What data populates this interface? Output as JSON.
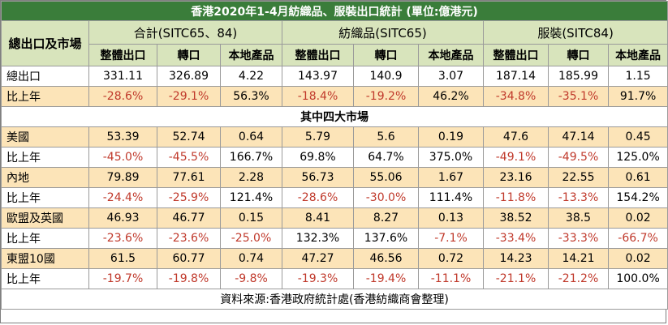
{
  "title": "香港2020年1-4月紡織品、服裝出口統計 (單位:億港元)",
  "header": {
    "row_label": "總出口及市場",
    "groups": [
      "合計(SITC65、84)",
      "紡織品(SITC65)",
      "服裝(SITC84)"
    ],
    "subcols": [
      "整體出口",
      "轉口",
      "本地產品"
    ]
  },
  "rows_top": [
    {
      "label": "總出口",
      "values": [
        "331.11",
        "326.89",
        "4.22",
        "143.97",
        "140.9",
        "3.07",
        "187.14",
        "185.99",
        "1.15"
      ]
    },
    {
      "label": "比上年",
      "values": [
        "-28.6%",
        "-29.1%",
        "56.3%",
        "-18.4%",
        "-19.2%",
        "46.2%",
        "-34.8%",
        "-35.1%",
        "91.7%"
      ]
    }
  ],
  "section_label": "其中四大市場",
  "rows_markets": [
    {
      "label": "美國",
      "values": [
        "53.39",
        "52.74",
        "0.64",
        "5.79",
        "5.6",
        "0.19",
        "47.6",
        "47.14",
        "0.45"
      ]
    },
    {
      "label": "比上年",
      "values": [
        "-45.0%",
        "-45.5%",
        "166.7%",
        "69.8%",
        "64.7%",
        "375.0%",
        "-49.1%",
        "-49.5%",
        "125.0%"
      ]
    },
    {
      "label": "內地",
      "values": [
        "79.89",
        "77.61",
        "2.28",
        "56.73",
        "55.06",
        "1.67",
        "23.16",
        "22.55",
        "0.61"
      ]
    },
    {
      "label": "比上年",
      "values": [
        "-24.4%",
        "-25.9%",
        "121.4%",
        "-28.6%",
        "-30.0%",
        "111.4%",
        "-11.8%",
        "-13.3%",
        "154.2%"
      ]
    },
    {
      "label": "歐盟及英國",
      "values": [
        "46.93",
        "46.77",
        "0.15",
        "8.41",
        "8.27",
        "0.13",
        "38.52",
        "38.5",
        "0.02"
      ]
    },
    {
      "label": "比上年",
      "values": [
        "-23.6%",
        "-23.6%",
        "-25.0%",
        "132.3%",
        "137.6%",
        "-7.1%",
        "-33.4%",
        "-33.3%",
        "-66.7%"
      ]
    },
    {
      "label": "東盟10國",
      "values": [
        "61.5",
        "60.77",
        "0.74",
        "47.27",
        "46.56",
        "0.72",
        "14.23",
        "14.21",
        "0.02"
      ]
    },
    {
      "label": "比上年",
      "values": [
        "-19.7%",
        "-19.8%",
        "-9.8%",
        "-19.3%",
        "-19.4%",
        "-11.1%",
        "-21.1%",
        "-21.2%",
        "100.0%"
      ]
    }
  ],
  "source": "資料來源:香港政府統計處(香港紡織商會整理)",
  "colors": {
    "title_bg": "#3a7d3a",
    "header_bg": "#d8e4bc",
    "tan_row": "#fce4b8",
    "negative": "#c0392b"
  }
}
